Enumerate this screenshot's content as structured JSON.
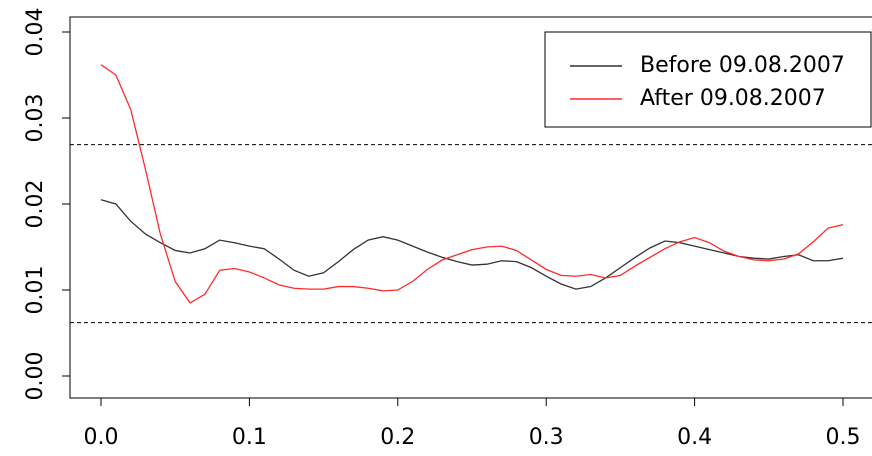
{
  "chart_data": {
    "type": "line",
    "x": [
      0,
      0.01,
      0.02,
      0.03,
      0.04,
      0.05,
      0.06,
      0.07,
      0.08,
      0.09,
      0.1,
      0.11,
      0.12,
      0.13,
      0.14,
      0.15,
      0.16,
      0.17,
      0.18,
      0.19,
      0.2,
      0.21,
      0.22,
      0.23,
      0.24,
      0.25,
      0.26,
      0.27,
      0.28,
      0.29,
      0.3,
      0.31,
      0.32,
      0.33,
      0.34,
      0.35,
      0.36,
      0.37,
      0.38,
      0.39,
      0.4,
      0.41,
      0.42,
      0.43,
      0.44,
      0.45,
      0.46,
      0.47,
      0.48,
      0.49,
      0.5
    ],
    "series": [
      {
        "name": "Before 09.08.2007",
        "color": "#333333",
        "values": [
          0.0205,
          0.02,
          0.018,
          0.0165,
          0.0155,
          0.0146,
          0.0143,
          0.0148,
          0.0158,
          0.0155,
          0.0151,
          0.0148,
          0.0136,
          0.0123,
          0.0116,
          0.012,
          0.0133,
          0.0147,
          0.0158,
          0.0162,
          0.0158,
          0.0151,
          0.0144,
          0.0138,
          0.0133,
          0.0129,
          0.013,
          0.0134,
          0.0133,
          0.0126,
          0.0116,
          0.0107,
          0.0101,
          0.0104,
          0.0114,
          0.0126,
          0.0138,
          0.0149,
          0.0157,
          0.0155,
          0.0151,
          0.0147,
          0.0143,
          0.0139,
          0.0137,
          0.0136,
          0.0139,
          0.0141,
          0.0134,
          0.0134,
          0.0137
        ]
      },
      {
        "name": "After 09.08.2007",
        "color": "#ff2a2a",
        "values": [
          0.0362,
          0.035,
          0.031,
          0.024,
          0.0165,
          0.011,
          0.0085,
          0.0095,
          0.0123,
          0.0125,
          0.0121,
          0.0114,
          0.0106,
          0.0102,
          0.0101,
          0.0101,
          0.0104,
          0.0104,
          0.0102,
          0.0099,
          0.01,
          0.011,
          0.0124,
          0.0135,
          0.0141,
          0.0147,
          0.015,
          0.0151,
          0.0146,
          0.0135,
          0.0124,
          0.0117,
          0.0116,
          0.0118,
          0.0114,
          0.0117,
          0.0128,
          0.0138,
          0.0148,
          0.0156,
          0.0161,
          0.0155,
          0.0145,
          0.0139,
          0.0135,
          0.0134,
          0.0136,
          0.0142,
          0.0156,
          0.0172,
          0.0176
        ]
      }
    ],
    "reference_lines": [
      0.0269,
      0.0062
    ],
    "xlim": [
      0,
      0.5
    ],
    "xticks": [
      {
        "value": 0,
        "label": "0.0"
      },
      0.1,
      0.2,
      0.3,
      0.4,
      0.5
    ],
    "ylim": [
      0,
      0.04
    ],
    "yticks": [
      {
        "value": 0,
        "label": "0.00"
      },
      0.01,
      0.02,
      0.03,
      0.04
    ],
    "legend": "top-right"
  }
}
